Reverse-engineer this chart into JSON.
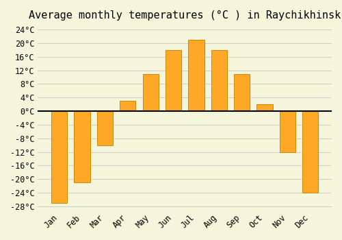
{
  "title": "Average monthly temperatures (°C ) in Raychikhinsk",
  "months": [
    "Jan",
    "Feb",
    "Mar",
    "Apr",
    "May",
    "Jun",
    "Jul",
    "Aug",
    "Sep",
    "Oct",
    "Nov",
    "Dec"
  ],
  "values": [
    -27,
    -21,
    -10,
    3,
    11,
    18,
    21,
    18,
    11,
    2,
    -12,
    -24
  ],
  "bar_color": "#FFA726",
  "bar_edge_color": "#CC8800",
  "ylim": [
    -28,
    24
  ],
  "yticks": [
    -28,
    -24,
    -20,
    -16,
    -12,
    -8,
    -4,
    0,
    4,
    8,
    12,
    16,
    20,
    24
  ],
  "ytick_labels": [
    "-28°C",
    "-24°C",
    "-20°C",
    "-16°C",
    "-12°C",
    "-8°C",
    "-4°C",
    "0°C",
    "4°C",
    "8°C",
    "12°C",
    "16°C",
    "20°C",
    "24°C"
  ],
  "background_color": "#F5F5DC",
  "grid_color": "#CCCCCC",
  "zero_line_color": "#000000",
  "title_fontsize": 11,
  "tick_fontsize": 8.5
}
